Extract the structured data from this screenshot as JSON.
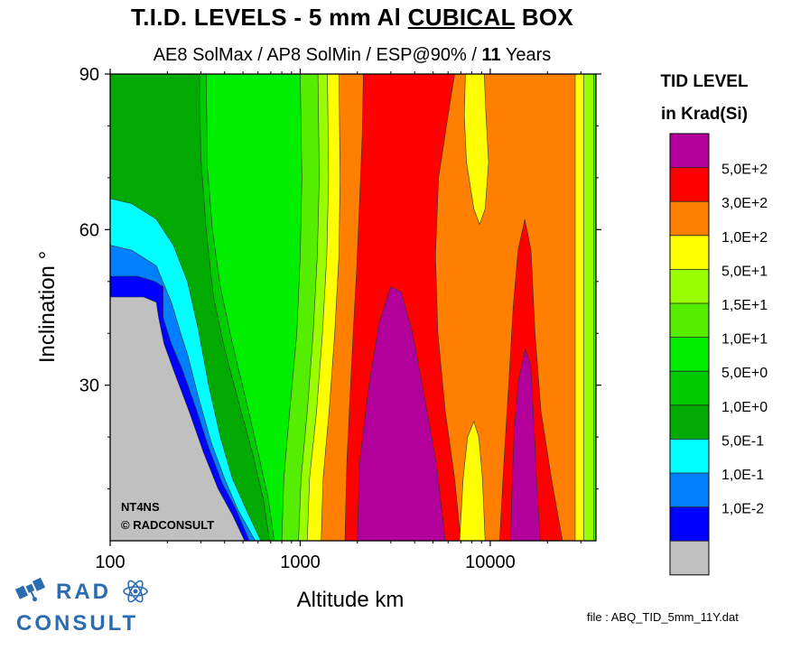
{
  "title": {
    "prefix": "T.I.D. LEVELS - 5 mm Al ",
    "underlined": "CUBICAL",
    "suffix": " BOX"
  },
  "subtitle": {
    "prefix": "AE8 SolMax / AP8 SolMin / ESP@90% / ",
    "bold": "11",
    "suffix": " Years"
  },
  "legend": {
    "title_line1": "TID LEVEL",
    "title_line2": "in Krad(Si)"
  },
  "annotation": {
    "line1": "NT4NS",
    "line2": "©  RADCONSULT"
  },
  "logo": {
    "line1": "RAD",
    "line2": "CONSULT"
  },
  "file_note": "file : ABQ_TID_5mm_11Y.dat",
  "colors": {
    "magenta": "#b3009a",
    "red": "#ff0000",
    "orange": "#ff8000",
    "yellow": "#ffff00",
    "yellow_green": "#99ff00",
    "light_green": "#55ee00",
    "bright_green": "#00ee00",
    "medium_green": "#00cc00",
    "green": "#00aa00",
    "cyan": "#00ffff",
    "light_blue": "#0080ff",
    "blue": "#0000ff",
    "gray": "#c0c0c0",
    "logo_blue": "#2b6cb0"
  },
  "chart_data": {
    "type": "heatmap",
    "xlabel": "Altitude km",
    "ylabel": "Inclination °",
    "xscale": "log",
    "xlim": [
      100,
      36000
    ],
    "ylim": [
      0,
      90
    ],
    "xticks": [
      {
        "value": 100,
        "label": "100"
      },
      {
        "value": 1000,
        "label": "1000"
      },
      {
        "value": 10000,
        "label": "10000"
      }
    ],
    "yticks": [
      {
        "value": 30,
        "label": "30"
      },
      {
        "value": 60,
        "label": "60"
      },
      {
        "value": 90,
        "label": "90"
      }
    ],
    "legend_levels": [
      {
        "label": "",
        "color": "#b3009a"
      },
      {
        "label": "5,0E+2",
        "color": "#ff0000"
      },
      {
        "label": "3,0E+2",
        "color": "#ff8000"
      },
      {
        "label": "1,0E+2",
        "color": "#ffff00"
      },
      {
        "label": "5,0E+1",
        "color": "#99ff00"
      },
      {
        "label": "1,5E+1",
        "color": "#55ee00"
      },
      {
        "label": "1,0E+1",
        "color": "#00ee00"
      },
      {
        "label": "5,0E+0",
        "color": "#00cc00"
      },
      {
        "label": "1,0E+0",
        "color": "#00aa00"
      },
      {
        "label": "5,0E-1",
        "color": "#00ffff"
      },
      {
        "label": "1,0E-1",
        "color": "#0080ff"
      },
      {
        "label": "1,0E-2",
        "color": "#0000ff"
      },
      {
        "label": "",
        "color": "#c0c0c0"
      }
    ],
    "regions": [
      {
        "color": "#00aa00",
        "points": [
          [
            100,
            0
          ],
          [
            36000,
            0
          ],
          [
            36000,
            90
          ],
          [
            100,
            90
          ]
        ]
      },
      {
        "color": "#00cc00",
        "points": [
          [
            295,
            90
          ],
          [
            300,
            74
          ],
          [
            320,
            60
          ],
          [
            350,
            47
          ],
          [
            400,
            37
          ],
          [
            480,
            26
          ],
          [
            560,
            17
          ],
          [
            640,
            8
          ],
          [
            690,
            0
          ],
          [
            36000,
            0
          ],
          [
            36000,
            90
          ]
        ]
      },
      {
        "color": "#00ee00",
        "points": [
          [
            320,
            90
          ],
          [
            325,
            72
          ],
          [
            345,
            60
          ],
          [
            380,
            49
          ],
          [
            440,
            38
          ],
          [
            520,
            27
          ],
          [
            600,
            17
          ],
          [
            680,
            8
          ],
          [
            730,
            0
          ],
          [
            36000,
            0
          ],
          [
            36000,
            90
          ]
        ]
      },
      {
        "color": "#55ee00",
        "points": [
          [
            1000,
            90
          ],
          [
            1020,
            70
          ],
          [
            1000,
            55
          ],
          [
            960,
            40
          ],
          [
            880,
            25
          ],
          [
            820,
            12
          ],
          [
            800,
            0
          ],
          [
            36000,
            0
          ],
          [
            36000,
            90
          ]
        ]
      },
      {
        "color": "#99ff00",
        "points": [
          [
            1240,
            90
          ],
          [
            1260,
            70
          ],
          [
            1230,
            55
          ],
          [
            1170,
            40
          ],
          [
            1090,
            25
          ],
          [
            1010,
            12
          ],
          [
            980,
            0
          ],
          [
            35000,
            0
          ],
          [
            35000,
            90
          ]
        ]
      },
      {
        "color": "#ffff00",
        "points": [
          [
            1390,
            90
          ],
          [
            1410,
            70
          ],
          [
            1380,
            55
          ],
          [
            1310,
            40
          ],
          [
            1220,
            25
          ],
          [
            1120,
            12
          ],
          [
            1090,
            0
          ],
          [
            31000,
            0
          ],
          [
            31000,
            90
          ]
        ]
      },
      {
        "color": "#ff8000",
        "points": [
          [
            1600,
            90
          ],
          [
            1620,
            70
          ],
          [
            1600,
            55
          ],
          [
            1520,
            40
          ],
          [
            1420,
            25
          ],
          [
            1320,
            12
          ],
          [
            1290,
            0
          ],
          [
            28000,
            0
          ],
          [
            28000,
            90
          ]
        ]
      },
      {
        "color": "#ff0000",
        "points": [
          [
            2150,
            90
          ],
          [
            2120,
            78
          ],
          [
            2050,
            65
          ],
          [
            1980,
            52
          ],
          [
            1900,
            40
          ],
          [
            1830,
            28
          ],
          [
            1760,
            15
          ],
          [
            1720,
            0
          ],
          [
            7000,
            0
          ],
          [
            6500,
            12
          ],
          [
            5800,
            25
          ],
          [
            5300,
            40
          ],
          [
            5150,
            55
          ],
          [
            5350,
            70
          ],
          [
            6000,
            82
          ],
          [
            6500,
            90
          ]
        ]
      },
      {
        "color": "#ffff00",
        "points": [
          [
            7400,
            90
          ],
          [
            7300,
            82
          ],
          [
            7500,
            73
          ],
          [
            8200,
            64
          ],
          [
            8800,
            61
          ],
          [
            9400,
            64
          ],
          [
            9800,
            73
          ],
          [
            9500,
            82
          ],
          [
            9300,
            90
          ]
        ]
      },
      {
        "color": "#ffff00",
        "points": [
          [
            6900,
            0
          ],
          [
            7200,
            12
          ],
          [
            7600,
            20
          ],
          [
            8200,
            23
          ],
          [
            8700,
            20
          ],
          [
            9100,
            12
          ],
          [
            9400,
            0
          ]
        ]
      },
      {
        "color": "#ff0000",
        "points": [
          [
            11200,
            0
          ],
          [
            11800,
            15
          ],
          [
            12500,
            30
          ],
          [
            13200,
            45
          ],
          [
            14000,
            56
          ],
          [
            15200,
            62
          ],
          [
            16400,
            56
          ],
          [
            17200,
            40
          ],
          [
            18500,
            25
          ],
          [
            21000,
            12
          ],
          [
            24000,
            0
          ]
        ]
      },
      {
        "color": "#b3009a",
        "points": [
          [
            2000,
            0
          ],
          [
            2050,
            15
          ],
          [
            2300,
            30
          ],
          [
            2600,
            42
          ],
          [
            3000,
            49
          ],
          [
            3400,
            48
          ],
          [
            3900,
            40
          ],
          [
            4600,
            26
          ],
          [
            5200,
            15
          ],
          [
            5800,
            0
          ]
        ]
      },
      {
        "color": "#b3009a",
        "points": [
          [
            12800,
            0
          ],
          [
            13000,
            10
          ],
          [
            13400,
            22
          ],
          [
            14100,
            31
          ],
          [
            15300,
            37
          ],
          [
            16300,
            34
          ],
          [
            16900,
            24
          ],
          [
            17500,
            12
          ],
          [
            18300,
            0
          ]
        ]
      },
      {
        "color": "#00ffff",
        "points": [
          [
            100,
            0
          ],
          [
            100,
            66
          ],
          [
            130,
            65
          ],
          [
            175,
            62
          ],
          [
            215,
            57
          ],
          [
            255,
            50
          ],
          [
            290,
            41
          ],
          [
            330,
            30
          ],
          [
            380,
            20
          ],
          [
            440,
            12
          ],
          [
            520,
            6
          ],
          [
            620,
            0
          ]
        ]
      },
      {
        "color": "#0080ff",
        "points": [
          [
            100,
            0
          ],
          [
            100,
            57
          ],
          [
            130,
            56
          ],
          [
            175,
            53
          ],
          [
            210,
            46
          ],
          [
            235,
            40
          ],
          [
            255,
            36
          ],
          [
            290,
            28
          ],
          [
            340,
            19
          ],
          [
            400,
            12
          ],
          [
            470,
            6
          ],
          [
            580,
            0
          ]
        ]
      },
      {
        "color": "#0000ff",
        "points": [
          [
            100,
            0
          ],
          [
            100,
            51
          ],
          [
            140,
            51
          ],
          [
            172,
            50
          ],
          [
            190,
            49
          ],
          [
            190,
            43
          ],
          [
            210,
            38
          ],
          [
            240,
            33
          ],
          [
            280,
            26
          ],
          [
            330,
            18
          ],
          [
            390,
            11
          ],
          [
            460,
            6
          ],
          [
            540,
            0
          ]
        ]
      },
      {
        "color": "#c0c0c0",
        "points": [
          [
            100,
            0
          ],
          [
            100,
            47
          ],
          [
            150,
            47
          ],
          [
            175,
            46
          ],
          [
            180,
            43
          ],
          [
            192,
            38
          ],
          [
            220,
            32
          ],
          [
            260,
            25
          ],
          [
            310,
            17
          ],
          [
            370,
            10
          ],
          [
            440,
            5
          ],
          [
            510,
            0
          ]
        ]
      }
    ]
  }
}
